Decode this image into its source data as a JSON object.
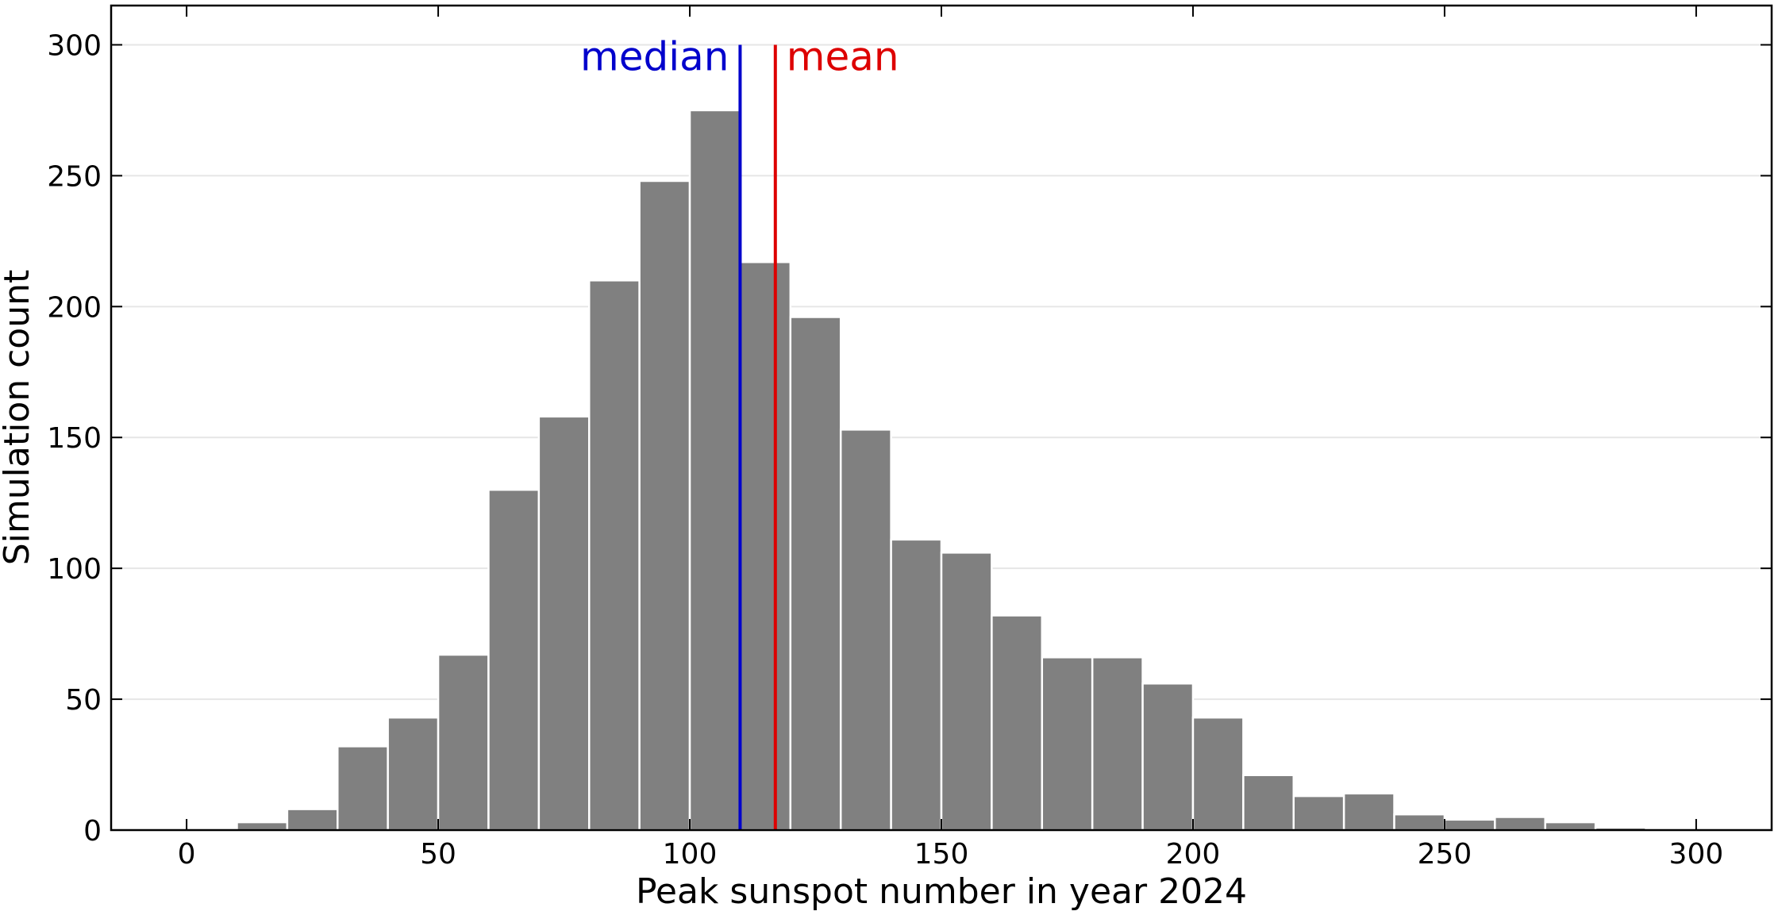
{
  "chart_data": {
    "type": "bar",
    "title": "",
    "xlabel": "Peak sunspot number in year 2024",
    "ylabel": "Simulation count",
    "bin_width": 10,
    "bin_starts": [
      10,
      20,
      30,
      40,
      50,
      60,
      70,
      80,
      90,
      100,
      110,
      120,
      130,
      140,
      150,
      160,
      170,
      180,
      190,
      200,
      210,
      220,
      230,
      240,
      250,
      260,
      270,
      280
    ],
    "values": [
      3,
      8,
      32,
      43,
      67,
      130,
      158,
      210,
      248,
      275,
      217,
      196,
      153,
      111,
      106,
      82,
      66,
      66,
      56,
      43,
      21,
      13,
      14,
      6,
      4,
      5,
      3,
      1
    ],
    "xlim": [
      -15,
      315
    ],
    "ylim": [
      0,
      315
    ],
    "xticks": [
      0,
      50,
      100,
      150,
      200,
      250,
      300
    ],
    "yticks": [
      0,
      50,
      100,
      150,
      200,
      250,
      300
    ],
    "grid": "horizontal",
    "bar_color": "#808080",
    "reference_lines": [
      {
        "label": "median",
        "x": 110,
        "color": "#0000cc",
        "label_side": "left"
      },
      {
        "label": "mean",
        "x": 117,
        "color": "#dd0000",
        "label_side": "right"
      }
    ]
  }
}
